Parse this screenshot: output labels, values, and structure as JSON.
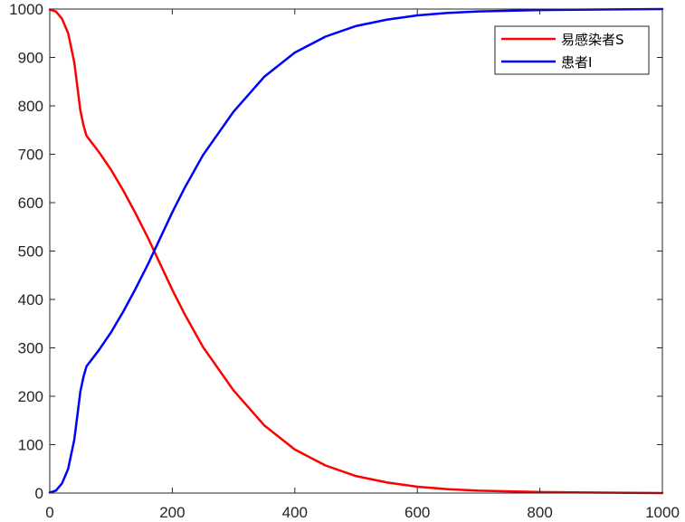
{
  "chart_data": {
    "type": "line",
    "title": "",
    "xlabel": "",
    "ylabel": "",
    "xlim": [
      0,
      1000
    ],
    "ylim": [
      0,
      1000
    ],
    "xticks": [
      0,
      200,
      400,
      600,
      800,
      1000
    ],
    "yticks": [
      0,
      100,
      200,
      300,
      400,
      500,
      600,
      700,
      800,
      900,
      1000
    ],
    "grid": false,
    "box": true,
    "legend": {
      "position": "top-right"
    },
    "series": [
      {
        "name": "易感染者S",
        "color": "#ff0000",
        "x": [
          0,
          10,
          20,
          30,
          40,
          45,
          50,
          55,
          60,
          80,
          100,
          120,
          140,
          160,
          180,
          200,
          220,
          250,
          300,
          350,
          400,
          450,
          500,
          550,
          600,
          650,
          700,
          800,
          900,
          1000
        ],
        "y": [
          999,
          995,
          980,
          950,
          890,
          840,
          790,
          760,
          738,
          705,
          668,
          625,
          578,
          528,
          474,
          420,
          370,
          302,
          212,
          140,
          90,
          57,
          35,
          22,
          13,
          8,
          5,
          2,
          1,
          0
        ]
      },
      {
        "name": "患者I",
        "color": "#0000ff",
        "x": [
          0,
          10,
          20,
          30,
          40,
          45,
          50,
          55,
          60,
          80,
          100,
          120,
          140,
          160,
          180,
          200,
          220,
          250,
          300,
          350,
          400,
          450,
          500,
          550,
          600,
          650,
          700,
          800,
          900,
          1000
        ],
        "y": [
          1,
          5,
          20,
          50,
          110,
          160,
          210,
          240,
          262,
          295,
          332,
          375,
          422,
          472,
          526,
          580,
          630,
          698,
          788,
          860,
          910,
          943,
          965,
          978,
          987,
          992,
          995,
          998,
          999,
          1000
        ]
      }
    ]
  }
}
